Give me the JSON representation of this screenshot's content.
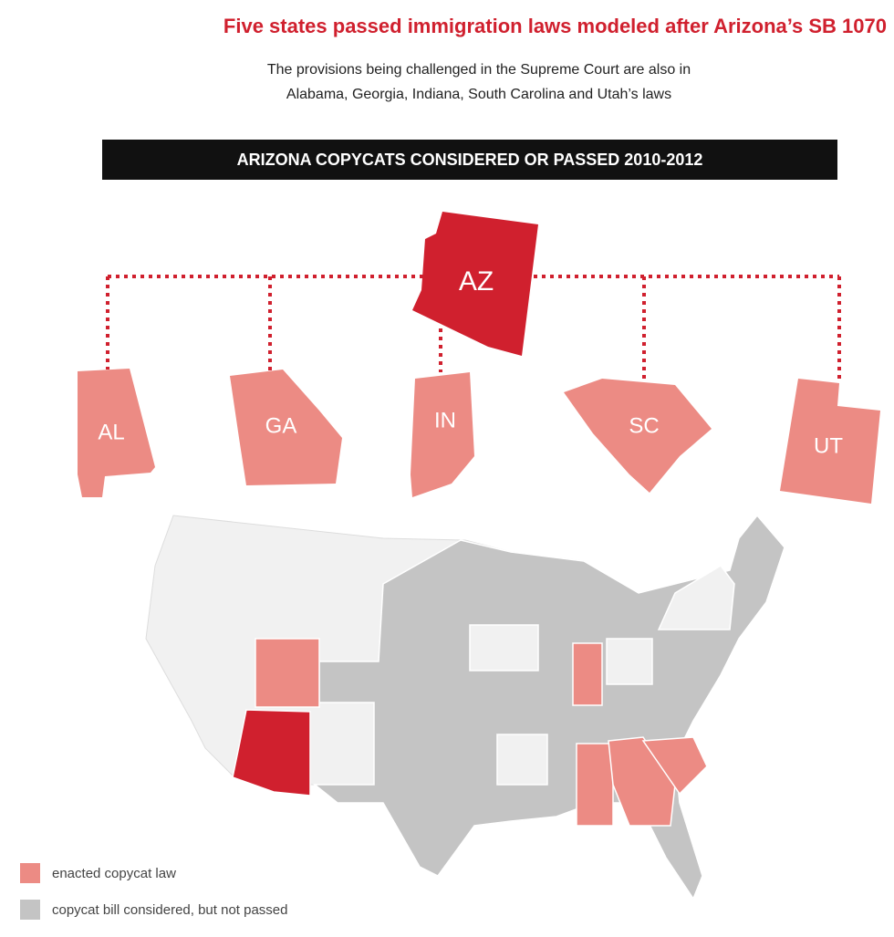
{
  "title": "Five states passed immigration laws modeled after Arizona’s SB 1070",
  "subtitle": [
    "The provisions being challenged in the Supreme Court are also in",
    "Alabama, Georgia, Indiana, South Carolina and Utah’s laws"
  ],
  "banner": "ARIZONA COPYCATS CONSIDERED OR PASSED 2010-2012",
  "hub": {
    "label": "AZ"
  },
  "states": [
    {
      "label": "AL"
    },
    {
      "label": "GA"
    },
    {
      "label": "IN"
    },
    {
      "label": "SC"
    },
    {
      "label": "UT"
    }
  ],
  "legend": [
    {
      "label": "enacted copycat law"
    },
    {
      "label": "copycat bill considered, but not passed"
    }
  ]
}
